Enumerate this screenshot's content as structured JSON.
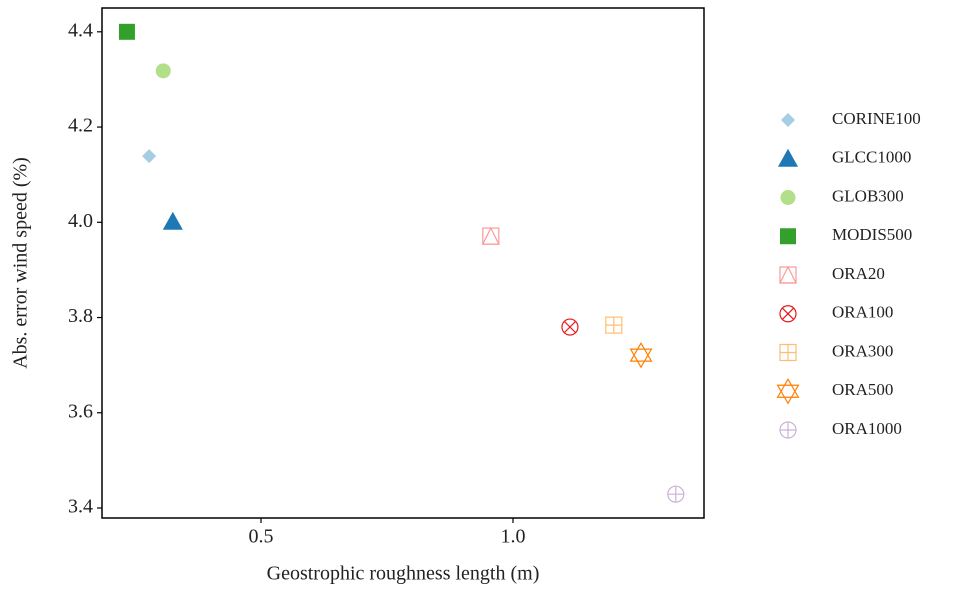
{
  "chart_data": {
    "type": "scatter",
    "xlabel": "Geostrophic roughness length (m)",
    "ylabel": "Abs. error wind speed (%)",
    "xlim": [
      0.1845,
      1.379
    ],
    "ylim": [
      3.379,
      4.45
    ],
    "xticks": [
      0.5,
      {
        "value": 1,
        "label": "1.0"
      }
    ],
    "yticks": [
      3.4,
      3.6,
      3.8,
      {
        "value": 4,
        "label": "4.0"
      },
      4.2,
      4.4
    ],
    "legend": "right",
    "series": [
      {
        "name": "CORINE100",
        "color": "#a6cee3",
        "marker": "diamond",
        "x": [
          0.278
        ],
        "y": [
          4.139
        ]
      },
      {
        "name": "GLCC1000",
        "color": "#1f78b4",
        "marker": "triangle",
        "x": [
          0.325
        ],
        "y": [
          4.001
        ]
      },
      {
        "name": "GLOB300",
        "color": "#b2df8a",
        "marker": "circle",
        "x": [
          0.306
        ],
        "y": [
          4.318
        ]
      },
      {
        "name": "MODIS500",
        "color": "#33a02c",
        "marker": "square",
        "x": [
          0.234
        ],
        "y": [
          4.4
        ]
      },
      {
        "name": "ORA20",
        "color": "#fb9a99",
        "marker": "square-triangle",
        "x": [
          0.956
        ],
        "y": [
          3.971
        ]
      },
      {
        "name": "ORA100",
        "color": "#e31a1c",
        "marker": "circle-x",
        "x": [
          1.113
        ],
        "y": [
          3.78
        ]
      },
      {
        "name": "ORA300",
        "color": "#fdbf6f",
        "marker": "square-plus",
        "x": [
          1.2
        ],
        "y": [
          3.784
        ]
      },
      {
        "name": "ORA500",
        "color": "#ff7f00",
        "marker": "star-david",
        "x": [
          1.254
        ],
        "y": [
          3.721
        ]
      },
      {
        "name": "ORA1000",
        "color": "#cab2d6",
        "marker": "circle-plus",
        "x": [
          1.323
        ],
        "y": [
          3.429
        ]
      }
    ]
  }
}
